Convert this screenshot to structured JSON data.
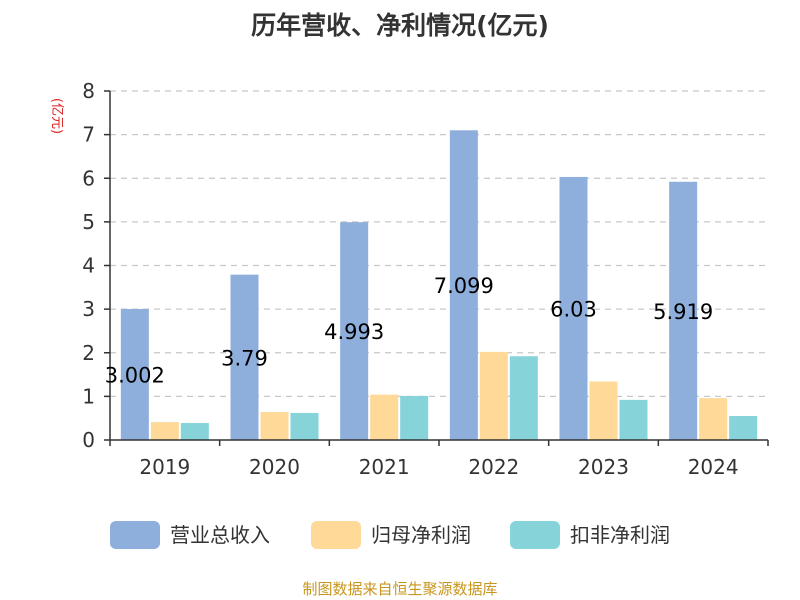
{
  "chart_data": {
    "type": "bar",
    "title": "历年营收、净利情况(亿元)",
    "ylabel": "(亿元)",
    "ylim": [
      0,
      8
    ],
    "yticks": [
      "0",
      "1",
      "2",
      "3",
      "4",
      "5",
      "6",
      "7",
      "8"
    ],
    "grid": true,
    "legend_position": "bottom",
    "categories": [
      "2019",
      "2020",
      "2021",
      "2022",
      "2023",
      "2024"
    ],
    "series": [
      {
        "name": "营业总收入",
        "color": "#8eaedb",
        "values": [
          3.002,
          3.79,
          4.993,
          7.099,
          6.03,
          5.919
        ],
        "labels": [
          "3.002",
          "3.79",
          "4.993",
          "7.099",
          "6.03",
          "5.919"
        ]
      },
      {
        "name": "归母净利润",
        "color": "#fed998",
        "values": [
          0.41,
          0.64,
          1.04,
          2.02,
          1.34,
          0.96
        ]
      },
      {
        "name": "扣非净利润",
        "color": "#86d4d9",
        "values": [
          0.39,
          0.62,
          1.01,
          1.92,
          0.92,
          0.55
        ]
      }
    ]
  },
  "footer": {
    "source": "制图数据来自恒生聚源数据库"
  }
}
